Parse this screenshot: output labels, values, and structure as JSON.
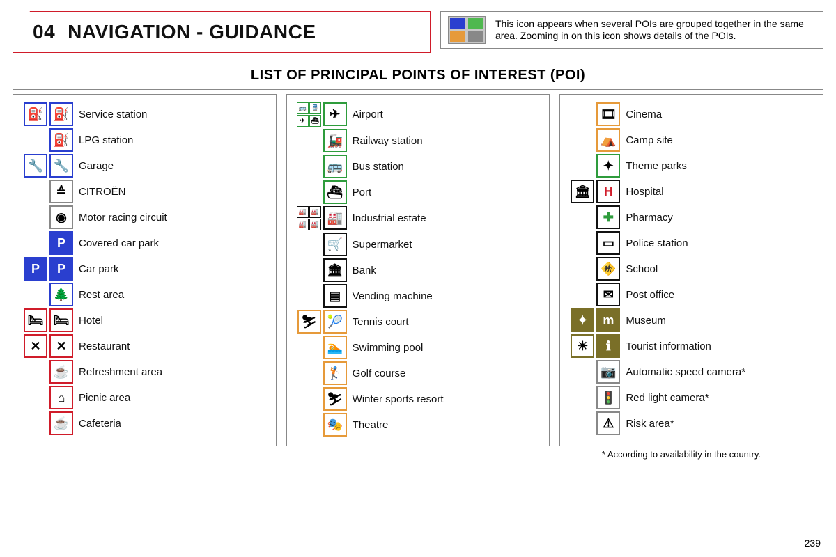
{
  "header": {
    "number": "04",
    "title": "NAVIGATION - GUIDANCE",
    "note": "This icon appears when several POIs are grouped together in the same area. Zooming in on this icon shows details of the POIs.",
    "note_icon_colors": [
      "#2a3fcf",
      "#4fb84f",
      "#e69a3a",
      "#888888"
    ]
  },
  "section_title": "LIST OF PRINCIPAL POINTS OF INTEREST (POI)",
  "footnote": "*  According to availability in the country.",
  "page_number": "239",
  "columns": [
    [
      {
        "label": "Service station",
        "icons": [
          {
            "t": "⛽",
            "b": "b-blue"
          },
          {
            "t": "⛽",
            "b": "b-blue"
          }
        ]
      },
      {
        "label": "LPG station",
        "icons": [
          {
            "t": "⛽",
            "b": "b-blue"
          }
        ]
      },
      {
        "label": "Garage",
        "icons": [
          {
            "t": "🔧",
            "b": "b-blue"
          },
          {
            "t": "🔧",
            "b": "b-blue"
          }
        ]
      },
      {
        "label": "CITROËN",
        "icons": [
          {
            "t": "≙",
            "b": "b-grey"
          }
        ]
      },
      {
        "label": "Motor racing circuit",
        "icons": [
          {
            "t": "◉",
            "b": "b-grey"
          }
        ]
      },
      {
        "label": "Covered car park",
        "icons": [
          {
            "t": "P",
            "b": "b-blue",
            "c": "fill-blue"
          }
        ]
      },
      {
        "label": "Car park",
        "icons": [
          {
            "t": "P",
            "b": "b-blue",
            "c": "fill-blue"
          },
          {
            "t": "P",
            "b": "b-blue",
            "c": "fill-blue"
          }
        ]
      },
      {
        "label": "Rest area",
        "icons": [
          {
            "t": "🌲",
            "b": "b-blue"
          }
        ]
      },
      {
        "label": "Hotel",
        "icons": [
          {
            "t": "🛏",
            "b": "b-red"
          },
          {
            "t": "🛏",
            "b": "b-red"
          }
        ]
      },
      {
        "label": "Restaurant",
        "icons": [
          {
            "t": "✕",
            "b": "b-red"
          },
          {
            "t": "✕",
            "b": "b-red"
          }
        ]
      },
      {
        "label": "Refreshment area",
        "icons": [
          {
            "t": "☕",
            "b": "b-red"
          }
        ]
      },
      {
        "label": "Picnic area",
        "icons": [
          {
            "t": "⌂",
            "b": "b-red"
          }
        ]
      },
      {
        "label": "Cafeteria",
        "icons": [
          {
            "t": "☕",
            "b": "b-red"
          }
        ]
      }
    ],
    [
      {
        "label": "Airport",
        "icons": [
          {
            "mini": [
              {
                "t": "🚌",
                "b": "b-green"
              },
              {
                "t": "🚆",
                "b": "b-green"
              },
              {
                "t": "✈",
                "b": "b-green"
              },
              {
                "t": "⛴",
                "b": "b-green"
              }
            ]
          },
          {
            "t": "✈",
            "b": "b-green"
          }
        ]
      },
      {
        "label": "Railway station",
        "icons": [
          {
            "t": "🚂",
            "b": "b-green"
          }
        ]
      },
      {
        "label": "Bus station",
        "icons": [
          {
            "t": "🚌",
            "b": "b-green"
          }
        ]
      },
      {
        "label": "Port",
        "icons": [
          {
            "t": "⛴",
            "b": "b-green"
          }
        ]
      },
      {
        "label": "Industrial estate",
        "icons": [
          {
            "mini": [
              {
                "t": "🏭",
                "b": "b-black"
              },
              {
                "t": "🏭",
                "b": "b-black"
              },
              {
                "t": "🏭",
                "b": "b-black"
              },
              {
                "t": "🏭",
                "b": "b-black"
              }
            ]
          },
          {
            "t": "🏭",
            "b": "b-black"
          }
        ]
      },
      {
        "label": "Supermarket",
        "icons": [
          {
            "t": "🛒",
            "b": "b-black"
          }
        ]
      },
      {
        "label": "Bank",
        "icons": [
          {
            "t": "🏛",
            "b": "b-black"
          }
        ]
      },
      {
        "label": "Vending machine",
        "icons": [
          {
            "t": "▤",
            "b": "b-black"
          }
        ]
      },
      {
        "label": "Tennis court",
        "icons": [
          {
            "t": "⛷",
            "b": "b-orange"
          },
          {
            "t": "🎾",
            "b": "b-orange"
          }
        ]
      },
      {
        "label": "Swimming pool",
        "icons": [
          {
            "t": "🏊",
            "b": "b-orange"
          }
        ]
      },
      {
        "label": "Golf course",
        "icons": [
          {
            "t": "🏌",
            "b": "b-orange"
          }
        ]
      },
      {
        "label": "Winter sports resort",
        "icons": [
          {
            "t": "⛷",
            "b": "b-orange"
          }
        ]
      },
      {
        "label": "Theatre",
        "icons": [
          {
            "t": "🎭",
            "b": "b-orange"
          }
        ]
      }
    ],
    [
      {
        "label": "Cinema",
        "icons": [
          {
            "t": "🎞",
            "b": "b-orange"
          }
        ]
      },
      {
        "label": "Camp site",
        "icons": [
          {
            "t": "⛺",
            "b": "b-orange"
          }
        ]
      },
      {
        "label": "Theme parks",
        "icons": [
          {
            "t": "✦",
            "b": "b-green"
          }
        ]
      },
      {
        "label": "Hospital",
        "icons": [
          {
            "t": "🏛",
            "b": "b-black"
          },
          {
            "t": "H",
            "b": "b-black",
            "c": "fill-red"
          }
        ]
      },
      {
        "label": "Pharmacy",
        "icons": [
          {
            "t": "✚",
            "b": "b-black",
            "c": "fill-green"
          }
        ]
      },
      {
        "label": "Police station",
        "icons": [
          {
            "t": "▭",
            "b": "b-black"
          }
        ]
      },
      {
        "label": "School",
        "icons": [
          {
            "t": "🚸",
            "b": "b-black"
          }
        ]
      },
      {
        "label": "Post office",
        "icons": [
          {
            "t": "✉",
            "b": "b-black"
          }
        ]
      },
      {
        "label": "Museum",
        "icons": [
          {
            "t": "✦",
            "b": "b-olive",
            "c": "fill-olive"
          },
          {
            "t": "m",
            "b": "b-olive",
            "c": "fill-olive"
          }
        ]
      },
      {
        "label": "Tourist information",
        "icons": [
          {
            "t": "☀",
            "b": "b-olive"
          },
          {
            "t": "ℹ",
            "b": "b-olive",
            "c": "fill-olive"
          }
        ]
      },
      {
        "label": "Automatic speed camera*",
        "icons": [
          {
            "t": "📷",
            "b": "b-grey"
          }
        ]
      },
      {
        "label": "Red light camera*",
        "icons": [
          {
            "t": "🚦",
            "b": "b-grey"
          }
        ]
      },
      {
        "label": "Risk area*",
        "icons": [
          {
            "t": "⚠",
            "b": "b-grey"
          }
        ]
      }
    ]
  ]
}
